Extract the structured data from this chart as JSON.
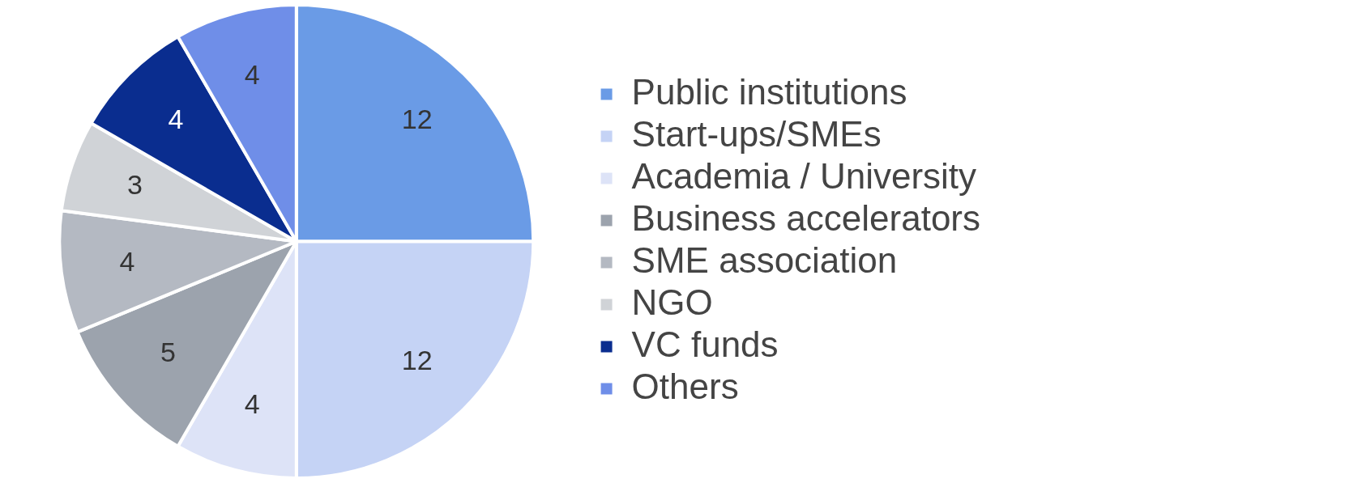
{
  "chart_data": {
    "type": "pie",
    "categories": [
      "Public institutions",
      "Start-ups/SMEs",
      "Academia / University",
      "Business accelerators",
      "SME association",
      "NGO",
      "VC funds",
      "Others"
    ],
    "values": [
      12,
      12,
      4,
      5,
      4,
      3,
      4,
      4
    ],
    "colors": [
      "#6a9be6",
      "#c5d3f5",
      "#dde3f7",
      "#9ca3ad",
      "#b4b9c2",
      "#d0d3d7",
      "#0a2d8f",
      "#6f8ee8"
    ],
    "data_labels": true,
    "legend": "right"
  }
}
